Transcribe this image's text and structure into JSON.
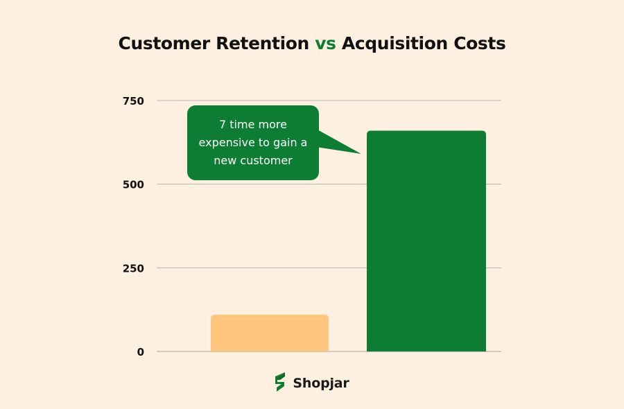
{
  "title": {
    "part1": "Customer Retention ",
    "vs": "vs",
    "part2": " Acquisition Costs"
  },
  "annotation": {
    "text": "7 time more expensive to gain a new customer"
  },
  "brand": {
    "name": "Shopjar",
    "icon": "shopjar-logo-icon"
  },
  "colors": {
    "background": "#fdf0e1",
    "retention_bar": "#ffc680",
    "acquisition_bar": "#0c7d32",
    "accent": "#0c7d32",
    "grid": "#b9b3ad"
  },
  "chart_data": {
    "type": "bar",
    "title": "Customer Retention vs Acquisition Costs",
    "xlabel": "",
    "ylabel": "",
    "categories": [
      "",
      ""
    ],
    "values": [
      110,
      660
    ],
    "ylim": [
      0,
      750
    ],
    "yticks": [
      0,
      250,
      500,
      750
    ],
    "grid": true,
    "legend": "none",
    "annotations": [
      "7 time more expensive to gain a new customer"
    ]
  }
}
